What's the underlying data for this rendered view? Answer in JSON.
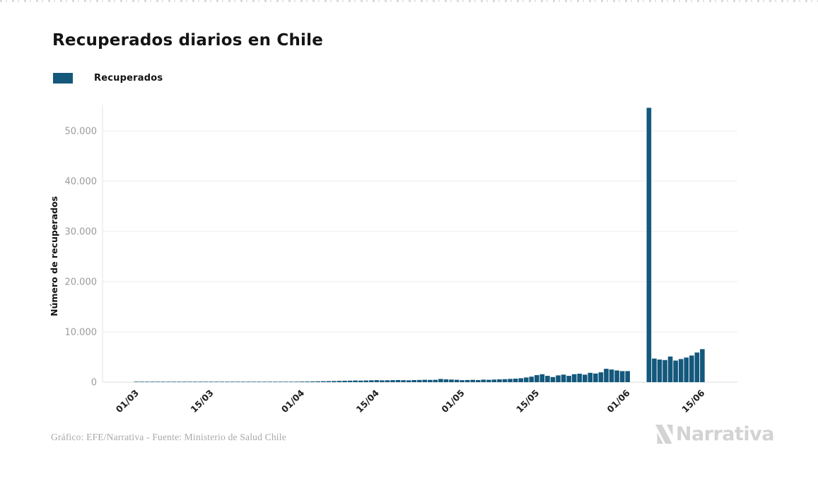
{
  "header": {
    "title": "Recuperados diarios en Chile"
  },
  "legend": {
    "items": [
      {
        "label": "Recuperados",
        "color": "#14587C"
      }
    ]
  },
  "chart_data": {
    "type": "bar",
    "title": "Recuperados diarios en Chile",
    "xlabel": "",
    "ylabel": "Número de recuperados",
    "ylim": [
      0,
      55000
    ],
    "grid": true,
    "legend_position": "top-left",
    "bar_color": "#14587C",
    "y_ticks": [
      0,
      10000,
      20000,
      30000,
      40000,
      50000
    ],
    "y_tick_labels": [
      "0",
      "10.000",
      "20.000",
      "30.000",
      "40.000",
      "50.000"
    ],
    "x_tick_labels": [
      "01/03",
      "15/03",
      "01/04",
      "15/04",
      "01/05",
      "15/05",
      "01/06",
      "15/06"
    ],
    "series_name": "Recuperados",
    "dates": [
      "01/03",
      "02/03",
      "03/03",
      "04/03",
      "05/03",
      "06/03",
      "07/03",
      "08/03",
      "09/03",
      "10/03",
      "11/03",
      "12/03",
      "13/03",
      "14/03",
      "15/03",
      "16/03",
      "17/03",
      "18/03",
      "19/03",
      "20/03",
      "21/03",
      "22/03",
      "23/03",
      "24/03",
      "25/03",
      "26/03",
      "27/03",
      "28/03",
      "29/03",
      "30/03",
      "31/03",
      "01/04",
      "02/04",
      "03/04",
      "04/04",
      "05/04",
      "06/04",
      "07/04",
      "08/04",
      "09/04",
      "10/04",
      "11/04",
      "12/04",
      "13/04",
      "14/04",
      "15/04",
      "16/04",
      "17/04",
      "18/04",
      "19/04",
      "20/04",
      "21/04",
      "22/04",
      "23/04",
      "24/04",
      "25/04",
      "26/04",
      "27/04",
      "28/04",
      "29/04",
      "30/04",
      "01/05",
      "02/05",
      "03/05",
      "04/05",
      "05/05",
      "06/05",
      "07/05",
      "08/05",
      "09/05",
      "10/05",
      "11/05",
      "12/05",
      "13/05",
      "14/05",
      "15/05",
      "16/05",
      "17/05",
      "18/05",
      "19/05",
      "20/05",
      "21/05",
      "22/05",
      "23/05",
      "24/05",
      "25/05",
      "26/05",
      "27/05",
      "28/05",
      "29/05",
      "30/05",
      "31/05",
      "01/06",
      "02/06",
      "03/06",
      "04/06",
      "05/06",
      "06/06",
      "07/06",
      "08/06",
      "09/06",
      "10/06",
      "11/06",
      "12/06",
      "13/06",
      "14/06",
      "15/06"
    ],
    "values": [
      2,
      2,
      3,
      3,
      4,
      4,
      5,
      6,
      6,
      7,
      8,
      8,
      9,
      10,
      12,
      13,
      15,
      16,
      18,
      20,
      25,
      30,
      35,
      40,
      45,
      50,
      60,
      70,
      80,
      90,
      100,
      120,
      130,
      150,
      170,
      190,
      210,
      230,
      260,
      280,
      300,
      330,
      310,
      340,
      370,
      400,
      360,
      380,
      400,
      420,
      390,
      370,
      420,
      440,
      480,
      450,
      470,
      640,
      560,
      520,
      480,
      400,
      430,
      470,
      420,
      510,
      470,
      520,
      560,
      600,
      650,
      700,
      780,
      930,
      1100,
      1400,
      1580,
      1260,
      1020,
      1350,
      1500,
      1260,
      1580,
      1680,
      1500,
      1860,
      1720,
      1960,
      2660,
      2520,
      2330,
      2200,
      2200,
      0,
      0,
      0,
      54600,
      4700,
      4500,
      4400,
      5100,
      4300,
      4600,
      4900,
      5300,
      5900,
      6570
    ]
  },
  "footer": {
    "credit": "Gráfico: EFE/Narrativa - Fuente: Ministerio de Salud Chile",
    "brand": "Narrativa"
  }
}
